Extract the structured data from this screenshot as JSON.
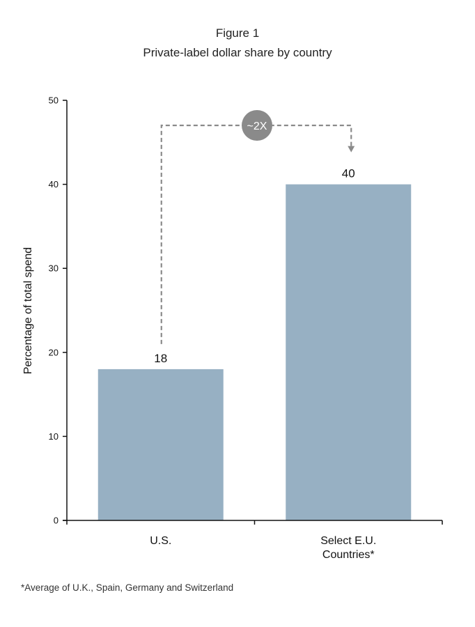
{
  "figure_label": "Figure 1",
  "chart_data": {
    "type": "bar",
    "title": "Private-label dollar share by country",
    "xlabel": "",
    "ylabel": "Percentage of total spend",
    "categories": [
      "U.S.",
      "Select E.U. Countries*"
    ],
    "category_label_lines": [
      [
        "U.S."
      ],
      [
        "Select E.U.",
        "Countries*"
      ]
    ],
    "values": [
      18,
      40
    ],
    "data_labels": [
      "18",
      "40"
    ],
    "ylim": [
      0,
      50
    ],
    "yticks": [
      0,
      10,
      20,
      30,
      40,
      50
    ],
    "ytick_labels": [
      "0",
      "10",
      "20",
      "30",
      "40",
      "50"
    ],
    "grid": false,
    "legend": "none",
    "bar_color": "#97b0c3",
    "annotation": {
      "text": "~2X",
      "from_category": "U.S.",
      "to_category": "Select E.U. Countries*",
      "style": "dashed-arrow",
      "badge_color": "#8a8a8a",
      "line_color": "#8a8a8a"
    }
  },
  "footnote": "*Average of U.K., Spain, Germany and Switzerland"
}
